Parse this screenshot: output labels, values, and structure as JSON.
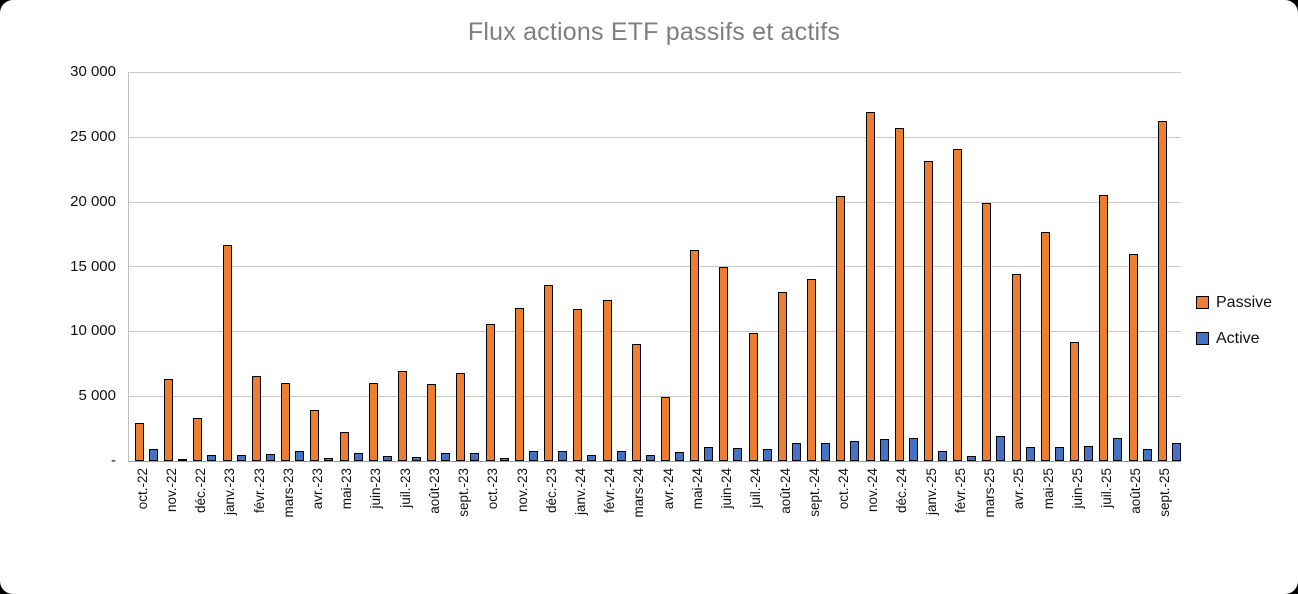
{
  "chart_data": {
    "type": "bar",
    "title": "Flux actions ETF passifs et actifs",
    "categories": [
      "oct.-22",
      "nov.-22",
      "déc.-22",
      "janv.-23",
      "févr.-23",
      "mars-23",
      "avr.-23",
      "mai-23",
      "juin-23",
      "juil.-23",
      "août-23",
      "sept.-23",
      "oct.-23",
      "nov.-23",
      "déc.-23",
      "janv.-24",
      "févr.-24",
      "mars-24",
      "avr.-24",
      "mai-24",
      "juin-24",
      "juil.-24",
      "août-24",
      "sept.-24",
      "oct.-24",
      "nov.-24",
      "déc.-24",
      "janv.-25",
      "févr.-25",
      "mars-25",
      "avr.-25",
      "mai-25",
      "juin-25",
      "juil.-25",
      "août-25",
      "sept.-25"
    ],
    "series": [
      {
        "name": "Passive",
        "color": "#ED7D31",
        "values": [
          2900,
          6300,
          3350,
          16650,
          6550,
          6050,
          3900,
          2250,
          6000,
          6950,
          5950,
          6750,
          10600,
          11800,
          13550,
          11700,
          12400,
          9000,
          4950,
          16250,
          14950,
          9900,
          13050,
          14050,
          20400,
          26950,
          25700,
          23150,
          24100,
          19900,
          14400,
          17650,
          9200,
          20500,
          15950,
          26200
        ]
      },
      {
        "name": "Active",
        "color": "#4472C4",
        "values": [
          950,
          100,
          450,
          500,
          550,
          750,
          200,
          600,
          400,
          300,
          600,
          600,
          250,
          750,
          800,
          500,
          750,
          500,
          700,
          1050,
          1000,
          900,
          1400,
          1400,
          1550,
          1700,
          1800,
          800,
          400,
          1950,
          1050,
          1050,
          1150,
          1750,
          950,
          1400
        ]
      }
    ],
    "ylim": [
      0,
      30000
    ],
    "ytick_interval": 5000,
    "ytick_labels": [
      "-",
      "5 000",
      "10 000",
      "15 000",
      "20 000",
      "25 000",
      "30 000"
    ],
    "xlabel": "",
    "ylabel": "",
    "grid": true,
    "legend_position": "right",
    "bar_border_color": "#000000",
    "gridline_color": "#C9C9C9",
    "title_color": "#7F7F7F",
    "axis_text_color": "#111111"
  }
}
